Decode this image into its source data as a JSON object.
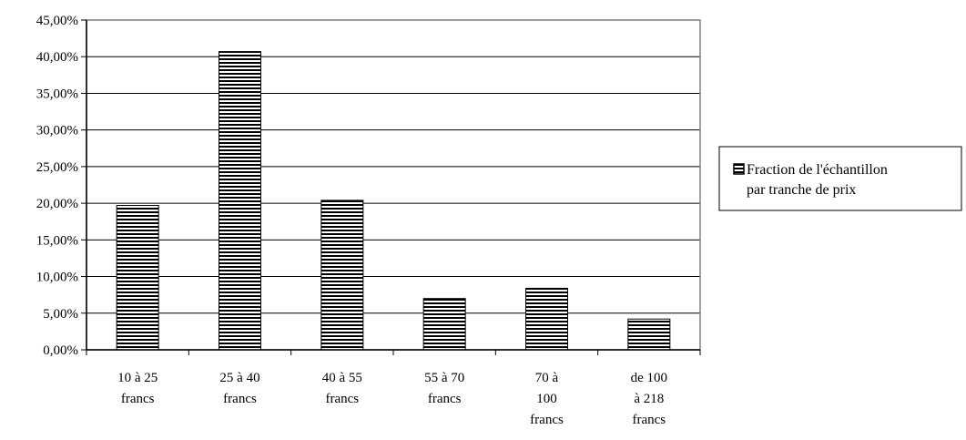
{
  "chart_data": {
    "type": "bar",
    "categories": [
      [
        "10 à 25",
        "francs"
      ],
      [
        "25 à 40",
        "francs"
      ],
      [
        "40 à 55",
        "francs"
      ],
      [
        "55 à 70",
        "francs"
      ],
      [
        "70 à",
        "100",
        "francs"
      ],
      [
        "de 100",
        "à 218",
        "francs"
      ]
    ],
    "series": [
      {
        "name": [
          "Fraction de l'échantillon",
          "par tranche de prix"
        ],
        "values": [
          19.7,
          40.7,
          20.4,
          7.0,
          8.4,
          4.2
        ]
      }
    ],
    "ylim": [
      0,
      45
    ],
    "yticks": [
      "0,00%",
      "5,00%",
      "10,00%",
      "15,00%",
      "20,00%",
      "25,00%",
      "30,00%",
      "35,00%",
      "40,00%",
      "45,00%"
    ],
    "grid": true,
    "legend": "right",
    "colors": {
      "bar_stripe": "#000000",
      "bar_fill": "#ffffff",
      "grid": "#000000",
      "plot_border": "#808080"
    }
  }
}
